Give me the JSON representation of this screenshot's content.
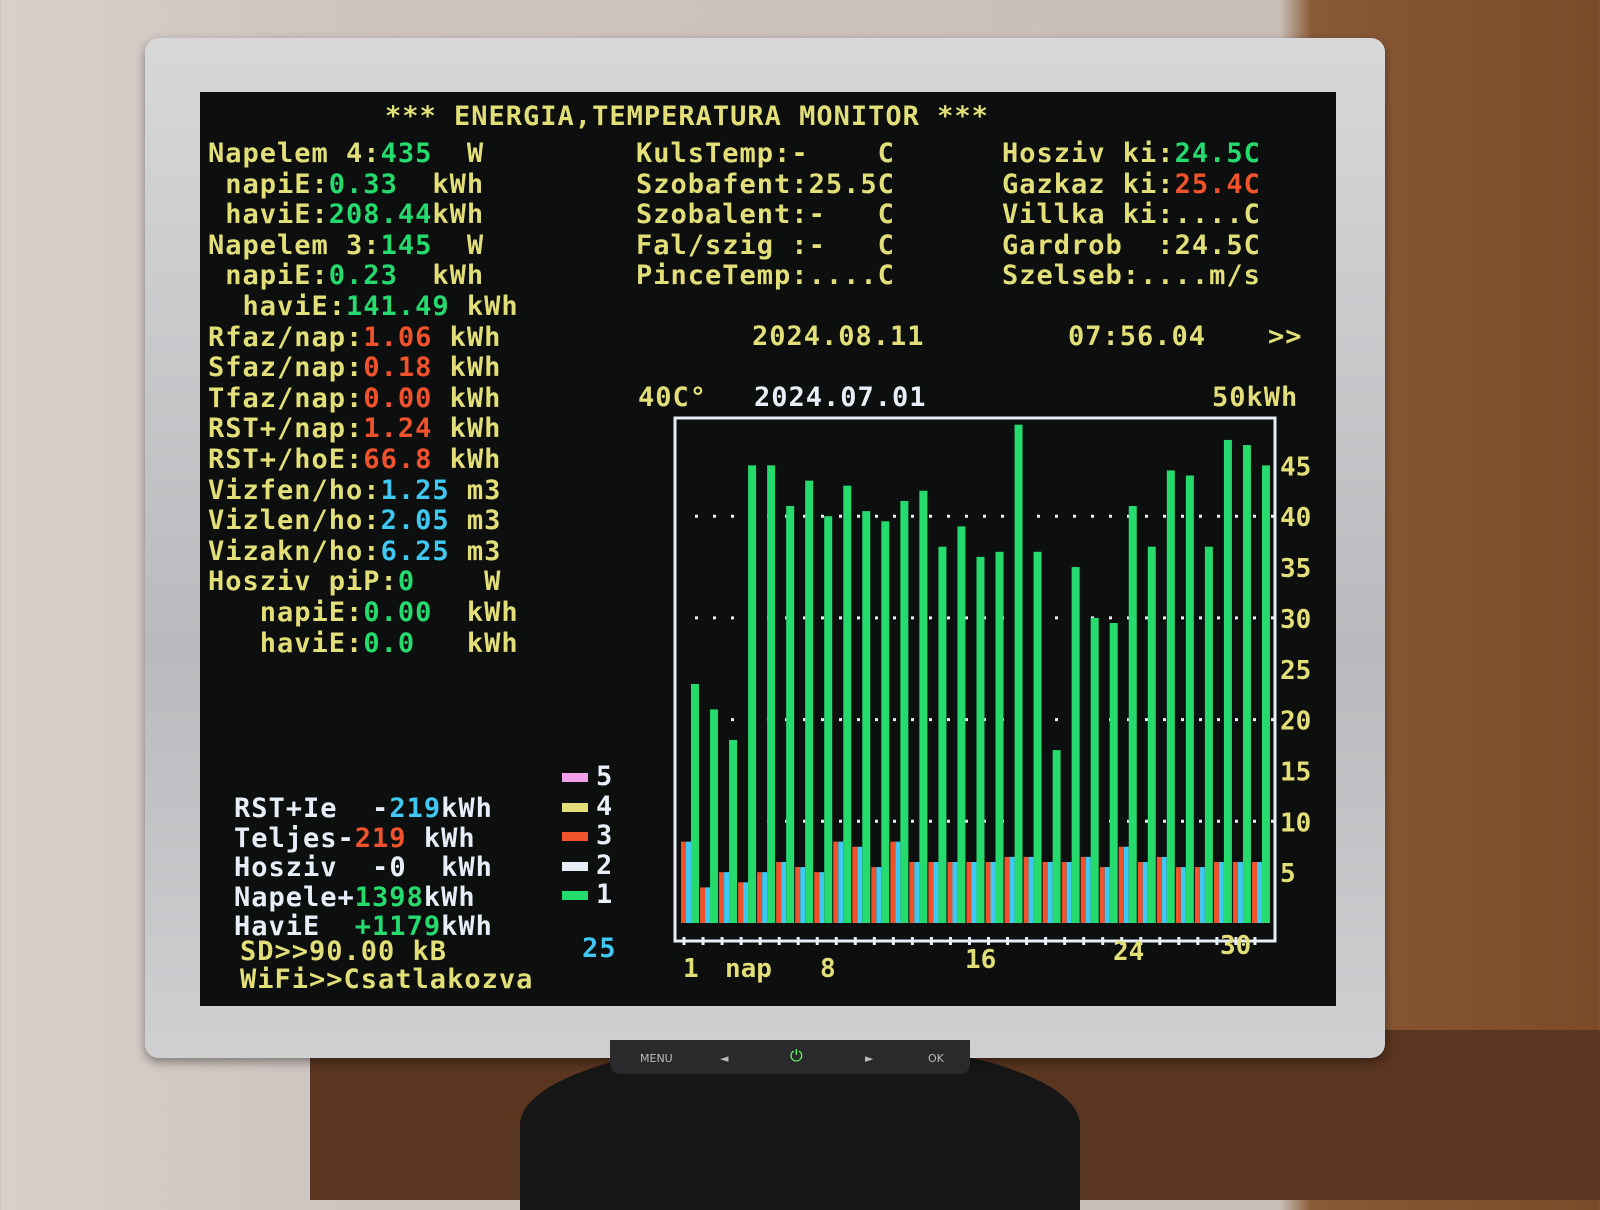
{
  "title": "*** ENERGIA,TEMPERATURA MONITOR ***",
  "left": [
    {
      "label": "Napelem 4:",
      "value": "435",
      "unit": "  W",
      "vc": "g"
    },
    {
      "label": " napiE:",
      "value": "0.33",
      "unit": "  kWh",
      "vc": "g"
    },
    {
      "label": " haviE:",
      "value": "208.44",
      "unit": "kWh",
      "vc": "g"
    },
    {
      "label": "Napelem 3:",
      "value": "145",
      "unit": "  W",
      "vc": "g"
    },
    {
      "label": " napiE:",
      "value": "0.23",
      "unit": "  kWh",
      "vc": "g"
    },
    {
      "label": "  haviE:",
      "value": "141.49",
      "unit": " kWh",
      "vc": "g"
    },
    {
      "label": "Rfaz/nap:",
      "value": "1.06",
      "unit": " kWh",
      "vc": "r"
    },
    {
      "label": "Sfaz/nap:",
      "value": "0.18",
      "unit": " kWh",
      "vc": "r"
    },
    {
      "label": "Tfaz/nap:",
      "value": "0.00",
      "unit": " kWh",
      "vc": "r"
    },
    {
      "label": "RST+/nap:",
      "value": "1.24",
      "unit": " kWh",
      "vc": "r"
    },
    {
      "label": "RST+/hoE:",
      "value": "66.8",
      "unit": " kWh",
      "vc": "r"
    },
    {
      "label": "Vizfen/ho:",
      "value": "1.25",
      "unit": " m3",
      "vc": "b"
    },
    {
      "label": "Vizlen/ho:",
      "value": "2.05",
      "unit": " m3",
      "vc": "b"
    },
    {
      "label": "Vizakn/ho:",
      "value": "6.25",
      "unit": " m3",
      "vc": "b"
    },
    {
      "label": "Hosziv piP:",
      "value": "0",
      "unit": "    W",
      "vc": "g"
    },
    {
      "label": "   napiE:",
      "value": "0.00",
      "unit": "  kWh",
      "vc": "g"
    },
    {
      "label": "   haviE:",
      "value": "0.0",
      "unit": "   kWh",
      "vc": "g"
    }
  ],
  "middle": [
    {
      "label": "KulsTemp:",
      "value": "-",
      "unit": "    C"
    },
    {
      "label": "Szobafent:",
      "value": "25.5C",
      "unit": ""
    },
    {
      "label": "Szobalent:",
      "value": "-",
      "unit": "   C"
    },
    {
      "label": "Fal/szig :",
      "value": "-",
      "unit": "   C"
    },
    {
      "label": "PinceTemp:",
      "value": "....C",
      "unit": ""
    }
  ],
  "right": [
    {
      "label": "Hosziv ki:",
      "value": "24.5C",
      "vc": "g"
    },
    {
      "label": "Gazkaz ki:",
      "value": "25.4C",
      "vc": "r"
    },
    {
      "label": "Villka ki:",
      "value": "....C",
      "vc": "y"
    },
    {
      "label": "Gardrob  :",
      "value": "24.5C",
      "vc": "y"
    },
    {
      "label": "Szelseb:",
      "value": "....m/s",
      "vc": "y"
    }
  ],
  "date": "2024.08.11",
  "time": "07:56.04",
  "next": ">>",
  "chart_header": {
    "temp_max": "40C°",
    "start_date": "2024.07.01",
    "energy_max": "50kWh"
  },
  "summary": [
    {
      "label": "RST+Ie  -",
      "value": "219",
      "unit": "kWh",
      "vc": "b"
    },
    {
      "label": "Teljes-",
      "value": "219",
      "unit": " kWh",
      "vc": "r"
    },
    {
      "label": "Hosziv  -",
      "value": "0",
      "unit": "  kWh",
      "vc": "w"
    },
    {
      "label": "Napele+",
      "value": "1398",
      "unit": "kWh",
      "vc": "g"
    },
    {
      "label": "HaviE  ",
      "value": "+1179",
      "unit": "kWh",
      "vc": "g"
    }
  ],
  "legend": [
    {
      "num": "5",
      "color": "#f0a0e8"
    },
    {
      "num": "4",
      "color": "#e3df78"
    },
    {
      "num": "3",
      "color": "#f0522c"
    },
    {
      "num": "2",
      "color": "#e8eef8"
    },
    {
      "num": "1",
      "color": "#25db6e"
    }
  ],
  "sd": "SD>>90.00 kB",
  "sd_count": "25",
  "wifi": "WiFi>>Csatlakozva",
  "monitor_buttons": [
    "MENU",
    "◄",
    "⏻",
    "►",
    "OK"
  ],
  "chart_data": {
    "type": "bar",
    "x": [
      1,
      2,
      3,
      4,
      5,
      6,
      7,
      8,
      9,
      10,
      11,
      12,
      13,
      14,
      15,
      16,
      17,
      18,
      19,
      20,
      21,
      22,
      23,
      24,
      25,
      26,
      27,
      28,
      29,
      30,
      31
    ],
    "xtick_labels": [
      "1",
      "nap",
      "8",
      "16",
      "24",
      "30"
    ],
    "ylim": [
      0,
      50
    ],
    "yticks": [
      5,
      10,
      15,
      20,
      25,
      30,
      35,
      40,
      45
    ],
    "grid": "dotted",
    "series": [
      {
        "color": "#f0522c",
        "values": [
          8,
          3.5,
          5,
          4,
          5,
          6,
          5.5,
          5,
          8,
          7.5,
          5.5,
          8,
          6,
          6,
          6,
          6,
          6,
          6.5,
          6.5,
          6,
          6,
          6.5,
          5.5,
          7.5,
          6,
          6.5,
          5.5,
          5.5,
          6,
          6,
          6
        ]
      },
      {
        "color": "#3ec8f2",
        "values": [
          8,
          3.5,
          5,
          4,
          5,
          6,
          5.5,
          5,
          8,
          7.5,
          5.5,
          8,
          6,
          6,
          6,
          6,
          6,
          6.5,
          6.5,
          6,
          6,
          6.5,
          5.5,
          7.5,
          6,
          6.5,
          5.5,
          5.5,
          6,
          6,
          6
        ]
      },
      {
        "color": "#25db6e",
        "values": [
          23.5,
          21,
          18,
          45,
          45,
          41,
          43.5,
          40,
          43,
          40.5,
          39.5,
          41.5,
          42.5,
          37,
          39,
          36,
          36.5,
          49,
          36.5,
          17,
          35,
          30,
          29.5,
          41,
          37,
          44.5,
          44,
          37,
          47.5,
          47,
          45
        ]
      }
    ]
  }
}
